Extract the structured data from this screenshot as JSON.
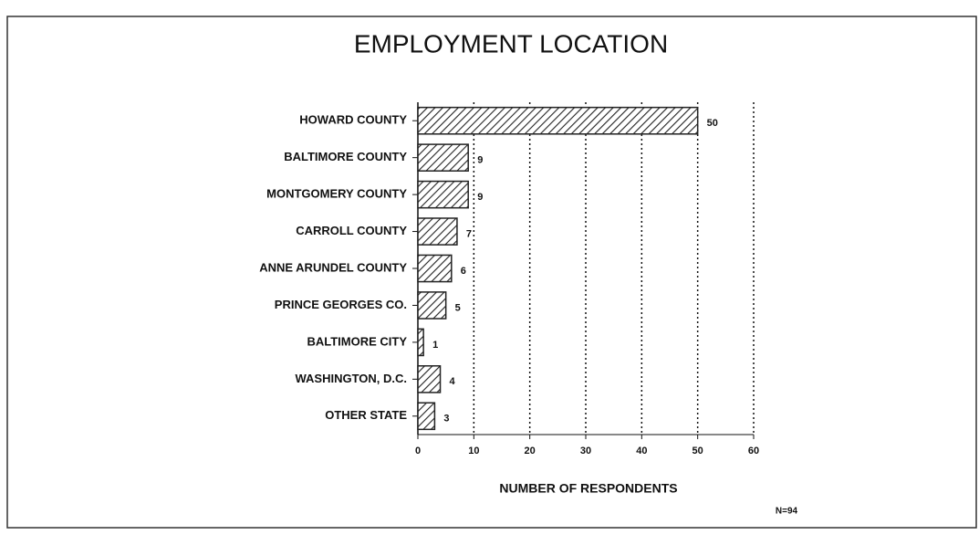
{
  "chart_data": {
    "type": "bar",
    "orientation": "horizontal",
    "title": "EMPLOYMENT LOCATION",
    "categories": [
      "HOWARD COUNTY",
      "BALTIMORE COUNTY",
      "MONTGOMERY COUNTY",
      "CARROLL COUNTY",
      "ANNE ARUNDEL COUNTY",
      "PRINCE GEORGES CO.",
      "BALTIMORE CITY",
      "WASHINGTON, D.C.",
      "OTHER STATE"
    ],
    "values": [
      50,
      9,
      9,
      7,
      6,
      5,
      1,
      4,
      3
    ],
    "xlim": [
      0,
      60
    ],
    "xticks": [
      0,
      10,
      20,
      30,
      40,
      50,
      60
    ],
    "xlabel": "NUMBER OF RESPONDENTS",
    "annotation": "N=94",
    "grid": true,
    "color": "#222222"
  }
}
